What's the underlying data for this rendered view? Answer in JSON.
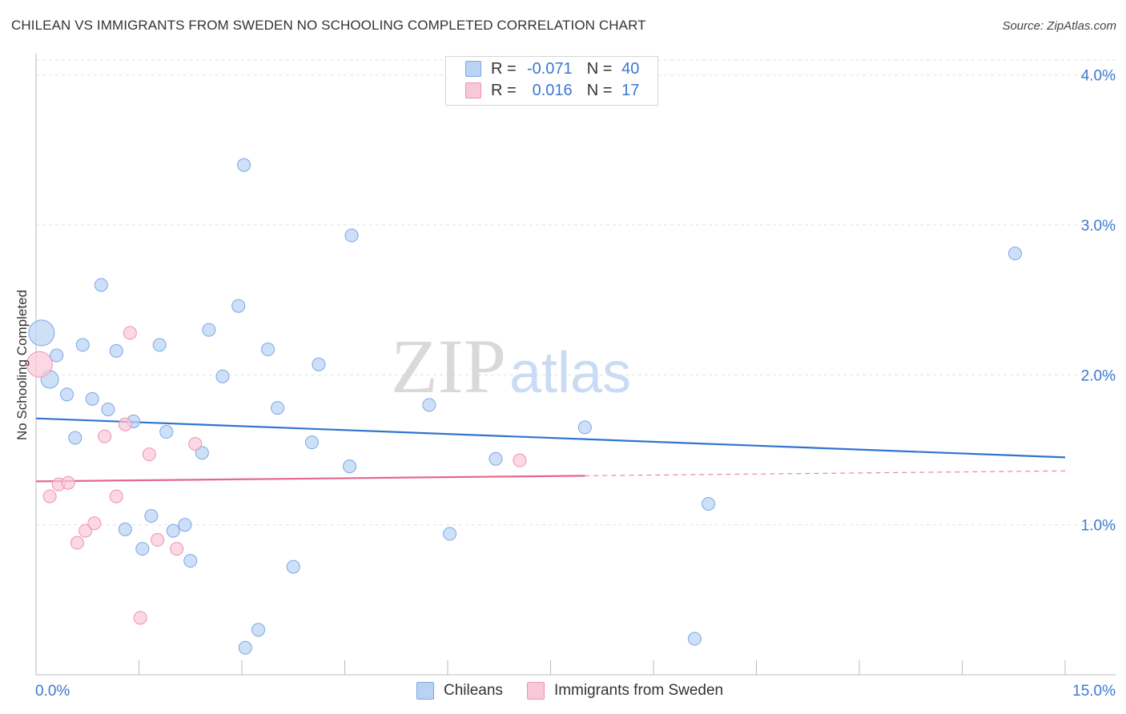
{
  "header": {
    "title": "CHILEAN VS IMMIGRANTS FROM SWEDEN NO SCHOOLING COMPLETED CORRELATION CHART",
    "source": "Source: ZipAtlas.com"
  },
  "watermark": {
    "zip": "ZIP",
    "atlas": "atlas"
  },
  "legend": {
    "r_label": "R =",
    "n_label": "N =",
    "series": [
      {
        "name": "Chileans",
        "r": "-0.071",
        "n": "40",
        "fill": "#b9d3f5",
        "stroke": "#7aa7e6"
      },
      {
        "name": "Immigrants from Sweden",
        "r": "0.016",
        "n": "17",
        "fill": "#f9c8d8",
        "stroke": "#ee92b0"
      }
    ]
  },
  "chart_data": {
    "type": "scatter",
    "title": "CHILEAN VS IMMIGRANTS FROM SWEDEN NO SCHOOLING COMPLETED CORRELATION CHART",
    "xlabel": "",
    "ylabel": "No Schooling Completed",
    "xlim": [
      0,
      15
    ],
    "ylim": [
      0,
      4.1
    ],
    "x_tick_labels": [
      "0.0%",
      "15.0%"
    ],
    "y_ticks": [
      1.0,
      2.0,
      3.0,
      4.0
    ],
    "y_tick_labels": [
      "1.0%",
      "2.0%",
      "3.0%",
      "4.0%"
    ],
    "grid": true,
    "series": [
      {
        "name": "Chileans",
        "color": "#7aa7e6",
        "fill": "#b9d3f5",
        "line_color": "#3173d0",
        "trend": {
          "x": [
            0,
            15
          ],
          "y": [
            1.71,
            1.45
          ],
          "dashed_from": null
        },
        "points": [
          {
            "x": 0.08,
            "y": 2.28,
            "size": "large"
          },
          {
            "x": 0.2,
            "y": 1.97,
            "size": "medium"
          },
          {
            "x": 0.3,
            "y": 2.13
          },
          {
            "x": 0.45,
            "y": 1.87
          },
          {
            "x": 0.57,
            "y": 1.58
          },
          {
            "x": 0.68,
            "y": 2.2
          },
          {
            "x": 0.82,
            "y": 1.84
          },
          {
            "x": 0.95,
            "y": 2.6
          },
          {
            "x": 1.05,
            "y": 1.77
          },
          {
            "x": 1.17,
            "y": 2.16
          },
          {
            "x": 1.3,
            "y": 0.97
          },
          {
            "x": 1.42,
            "y": 1.69
          },
          {
            "x": 1.55,
            "y": 0.84
          },
          {
            "x": 1.68,
            "y": 1.06
          },
          {
            "x": 1.8,
            "y": 2.2
          },
          {
            "x": 1.9,
            "y": 1.62
          },
          {
            "x": 2.0,
            "y": 0.96
          },
          {
            "x": 2.17,
            "y": 1.0
          },
          {
            "x": 2.25,
            "y": 0.76
          },
          {
            "x": 2.42,
            "y": 1.48
          },
          {
            "x": 2.52,
            "y": 2.3
          },
          {
            "x": 2.72,
            "y": 1.99
          },
          {
            "x": 2.95,
            "y": 2.46
          },
          {
            "x": 3.03,
            "y": 3.4
          },
          {
            "x": 3.05,
            "y": 0.18
          },
          {
            "x": 3.24,
            "y": 0.3
          },
          {
            "x": 3.38,
            "y": 2.17
          },
          {
            "x": 3.52,
            "y": 1.78
          },
          {
            "x": 3.75,
            "y": 0.72
          },
          {
            "x": 4.02,
            "y": 1.55
          },
          {
            "x": 4.12,
            "y": 2.07
          },
          {
            "x": 4.57,
            "y": 1.39
          },
          {
            "x": 4.6,
            "y": 2.93
          },
          {
            "x": 5.73,
            "y": 1.8
          },
          {
            "x": 6.03,
            "y": 0.94
          },
          {
            "x": 6.7,
            "y": 1.44
          },
          {
            "x": 8.0,
            "y": 1.65
          },
          {
            "x": 9.6,
            "y": 0.24
          },
          {
            "x": 9.8,
            "y": 1.14
          },
          {
            "x": 14.27,
            "y": 2.81
          }
        ]
      },
      {
        "name": "Immigrants from Sweden",
        "color": "#ee92b0",
        "fill": "#f9c8d8",
        "line_color": "#e5668f",
        "trend": {
          "x": [
            0,
            15
          ],
          "y": [
            1.29,
            1.36
          ],
          "dashed_from": 8.0
        },
        "points": [
          {
            "x": 0.05,
            "y": 2.07,
            "size": "large"
          },
          {
            "x": 0.2,
            "y": 1.19
          },
          {
            "x": 0.33,
            "y": 1.27
          },
          {
            "x": 0.47,
            "y": 1.28
          },
          {
            "x": 0.6,
            "y": 0.88
          },
          {
            "x": 0.72,
            "y": 0.96
          },
          {
            "x": 0.85,
            "y": 1.01
          },
          {
            "x": 1.0,
            "y": 1.59
          },
          {
            "x": 1.17,
            "y": 1.19
          },
          {
            "x": 1.3,
            "y": 1.67
          },
          {
            "x": 1.37,
            "y": 2.28
          },
          {
            "x": 1.52,
            "y": 0.38
          },
          {
            "x": 1.65,
            "y": 1.47
          },
          {
            "x": 1.77,
            "y": 0.9
          },
          {
            "x": 2.05,
            "y": 0.84
          },
          {
            "x": 2.32,
            "y": 1.54
          },
          {
            "x": 7.05,
            "y": 1.43
          }
        ]
      }
    ]
  }
}
